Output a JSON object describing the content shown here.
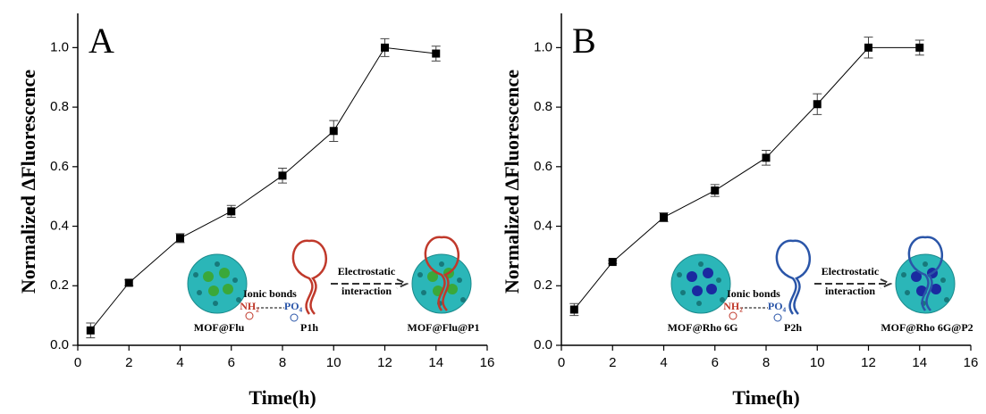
{
  "chart_data": [
    {
      "type": "line",
      "panel": "A",
      "x_label": "Time(h)",
      "y_label": "Normalized ΔFluorescence",
      "x": [
        0.5,
        2,
        4,
        6,
        8,
        10,
        12,
        14
      ],
      "values": [
        0.05,
        0.21,
        0.36,
        0.45,
        0.57,
        0.72,
        1.0,
        0.98
      ],
      "errors": [
        0.025,
        0.01,
        0.015,
        0.02,
        0.025,
        0.035,
        0.03,
        0.025
      ],
      "color": "#000000",
      "dna_color": "#c0392b",
      "core_color": "#3aa83a",
      "xlim": [
        0,
        16
      ],
      "xticks": [
        0,
        2,
        4,
        6,
        8,
        10,
        12,
        14,
        16
      ],
      "ylim": [
        0,
        1.1
      ],
      "yticks": [
        {
          "value": 0,
          "label": "0.0"
        },
        0.2,
        0.4,
        0.6,
        0.8,
        {
          "value": 1,
          "label": "1.0"
        }
      ],
      "annotations": {
        "bond": "Ionic bonds",
        "amine": "NH₂",
        "phosphate": "PO₄",
        "mof": "MOF@Flu",
        "probe": "P1h",
        "process": "Electrostatic",
        "process2": "interaction",
        "product": "MOF@Flu@P1"
      }
    },
    {
      "type": "line",
      "panel": "B",
      "x_label": "Time(h)",
      "y_label": "Normalized ΔFluorescence",
      "x": [
        0.5,
        2,
        4,
        6,
        8,
        10,
        12,
        14
      ],
      "values": [
        0.12,
        0.28,
        0.43,
        0.52,
        0.63,
        0.81,
        1.0,
        1.0
      ],
      "errors": [
        0.02,
        0.005,
        0.015,
        0.02,
        0.025,
        0.035,
        0.035,
        0.025
      ],
      "color": "#000000",
      "dna_color": "#2a55a8",
      "core_color": "#1a2aa0",
      "xlim": [
        0,
        16
      ],
      "xticks": [
        0,
        2,
        4,
        6,
        8,
        10,
        12,
        14,
        16
      ],
      "ylim": [
        0,
        1.1
      ],
      "yticks": [
        {
          "value": 0,
          "label": "0.0"
        },
        0.2,
        0.4,
        0.6,
        0.8,
        {
          "value": 1,
          "label": "1.0"
        }
      ],
      "annotations": {
        "bond": "Ionic bonds",
        "amine": "NH₂",
        "phosphate": "PO₄",
        "mof": "MOF@Rho 6G",
        "probe": "P2h",
        "process": "Electrostatic",
        "process2": "interaction",
        "product": "MOF@Rho 6G@P2"
      }
    }
  ]
}
